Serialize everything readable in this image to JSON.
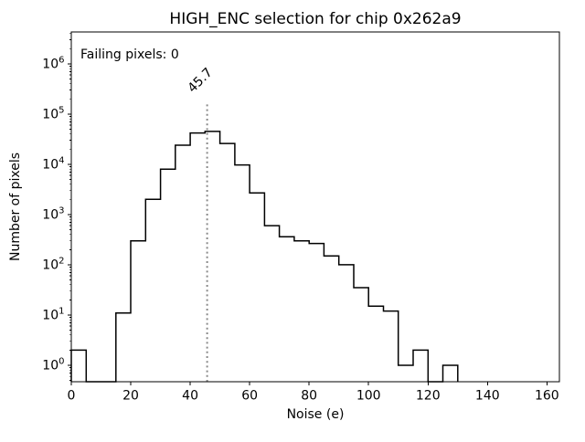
{
  "annotation": {
    "text": "Failing pixels: 0",
    "color": "#ff0000"
  },
  "marker": {
    "value": 45.7,
    "label": "45.7",
    "color": "#8a8a8a"
  },
  "chart_data": {
    "type": "bar",
    "subtype": "histogram-step",
    "title": "HIGH_ENC selection for chip 0x262a9",
    "xlabel": "Noise (e)",
    "ylabel": "Number of pixels",
    "yscale": "log",
    "grid": false,
    "legend_position": "none",
    "xlim": [
      0,
      164.2
    ],
    "ylim": [
      0.47,
      4300000
    ],
    "x_ticks": [
      0,
      20,
      40,
      60,
      80,
      100,
      120,
      140,
      160
    ],
    "y_tick_exponents": [
      0,
      1,
      2,
      3,
      4,
      5,
      6
    ],
    "bin_edges": [
      0,
      5,
      10,
      15,
      20,
      25,
      30,
      35,
      40,
      45,
      50,
      55,
      60,
      65,
      70,
      75,
      80,
      85,
      90,
      95,
      100,
      105,
      110,
      115,
      120,
      125,
      130
    ],
    "counts": [
      2,
      0,
      0,
      11,
      300,
      2000,
      8000,
      24000,
      42000,
      45000,
      26000,
      9700,
      2700,
      600,
      360,
      300,
      265,
      150,
      100,
      35,
      15,
      12,
      1,
      2,
      0,
      1
    ],
    "line_color": "#000000"
  }
}
